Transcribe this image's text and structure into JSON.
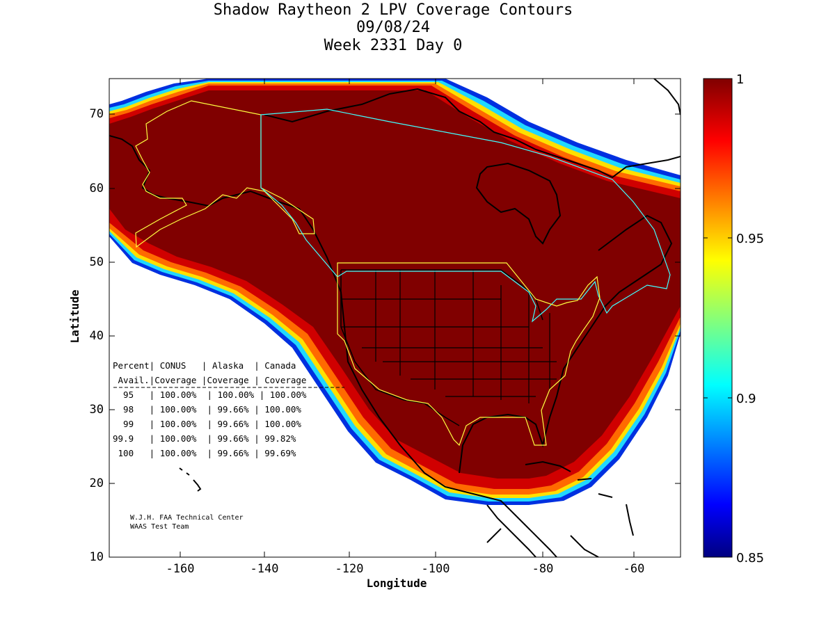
{
  "title": {
    "line1": "Shadow Raytheon 2 LPV Coverage Contours",
    "line2": "09/08/24",
    "line3": "Week 2331 Day 0"
  },
  "axes": {
    "xlabel": "Longitude",
    "ylabel": "Latitude",
    "xticks": [
      "-160",
      "-140",
      "-120",
      "-100",
      "-80",
      "-60"
    ],
    "yticks": [
      "10",
      "20",
      "30",
      "40",
      "50",
      "60",
      "70"
    ],
    "xlim": [
      -175,
      -50
    ],
    "ylim": [
      10,
      75
    ]
  },
  "colorbar": {
    "ticks": [
      "1",
      "0.95",
      "0.9",
      "0.85"
    ],
    "range": [
      0.85,
      1.0
    ],
    "colormap": "jet"
  },
  "coverage_table": {
    "header1": "Percent| CONUS   | Alaska  | Canada",
    "header2": " Avail.|Coverage |Coverage | Coverage",
    "rows": [
      "  95   | 100.00%  | 100.00% | 100.00%",
      "  98   | 100.00%  | 99.66% | 100.00%",
      "  99   | 100.00%  | 99.66% | 100.00%",
      "99.9   | 100.00%  | 99.66% | 99.82%",
      " 100   | 100.00%  | 99.66% | 99.69%"
    ]
  },
  "credit": {
    "line1": "W.J.H. FAA Technical Center",
    "line2": "WAAS Test Team"
  },
  "colors": {
    "coverage_full": "#800000",
    "coverage_edge_red": "#c80000",
    "coverage_orange": "#ff6000",
    "coverage_yellow": "#ffe000",
    "coverage_cyan": "#20e0ff",
    "coverage_blue": "#0020e0",
    "conus_outline": "#ffff40",
    "canada_outline": "#40ffff",
    "alaska_outline": "#ffff40"
  }
}
